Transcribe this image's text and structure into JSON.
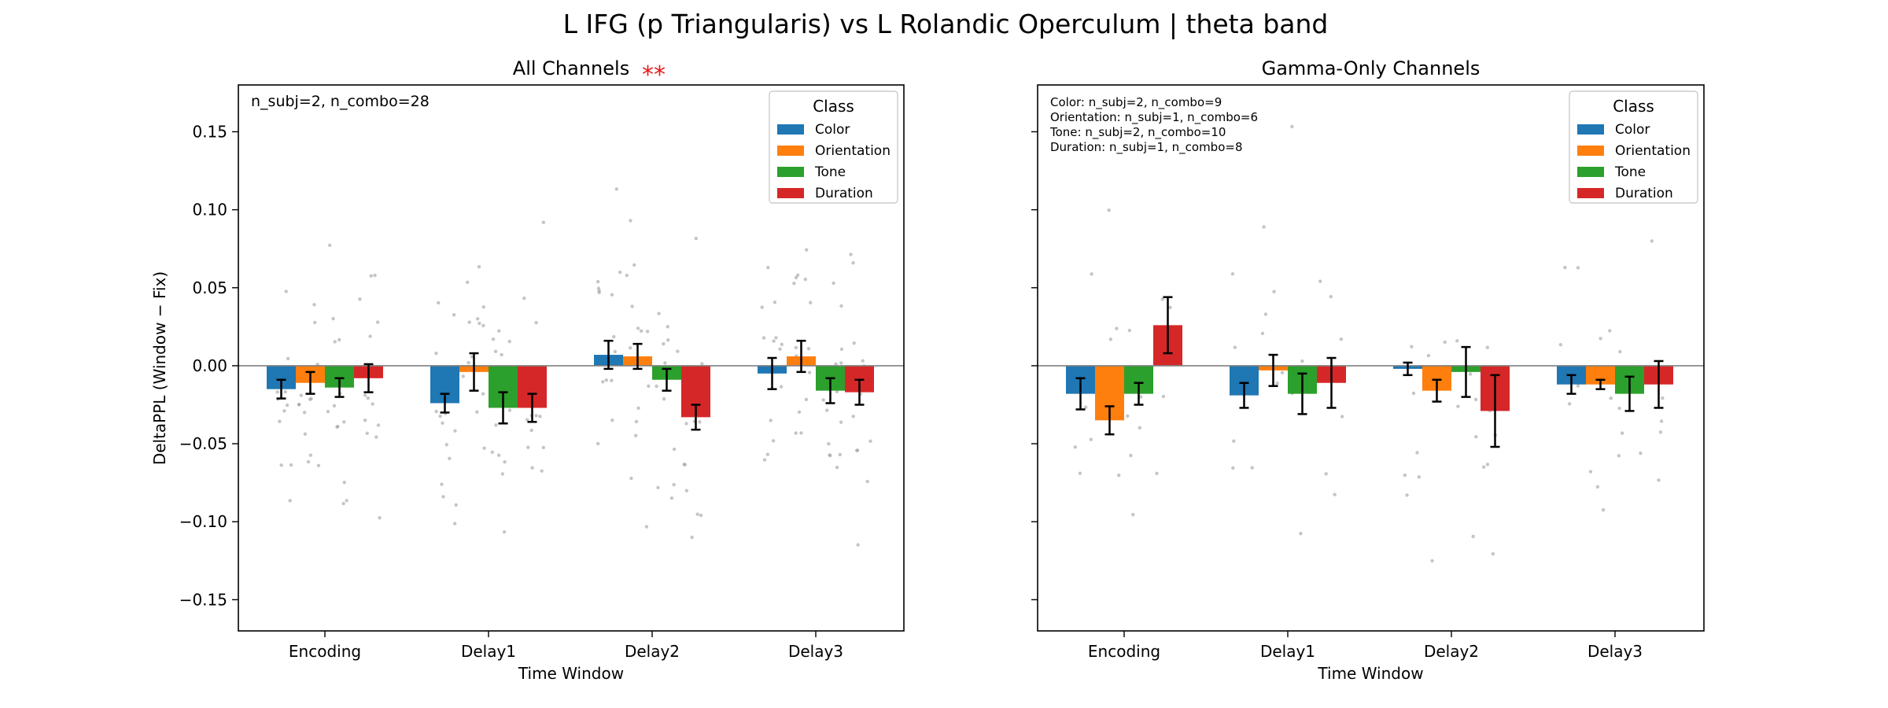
{
  "figure": {
    "title": "L IFG (p Triangularis) vs L Rolandic Operculum  |  theta band",
    "ylabel": "DeltaPPL (Window − Fix)",
    "ylim": [
      -0.17,
      0.18
    ],
    "yticks": [
      0.15,
      0.1,
      0.05,
      0.0,
      -0.05,
      -0.1,
      -0.15
    ],
    "ytick_labels": [
      "0.15",
      "0.10",
      "0.05",
      "0.00",
      "−0.05",
      "−0.10",
      "−0.15"
    ],
    "legend_title": "Class",
    "classes": [
      {
        "name": "Color",
        "color": "#1f77b4"
      },
      {
        "name": "Orientation",
        "color": "#ff7f0e"
      },
      {
        "name": "Tone",
        "color": "#2ca02c"
      },
      {
        "name": "Duration",
        "color": "#d62728"
      }
    ]
  },
  "chart_data": [
    {
      "type": "bar",
      "title": "All Channels",
      "significance": "**",
      "xlabel": "Time Window",
      "ylabel": "DeltaPPL (Window − Fix)",
      "categories": [
        "Encoding",
        "Delay1",
        "Delay2",
        "Delay3"
      ],
      "ylim": [
        -0.17,
        0.18
      ],
      "legend_loc": "upper right",
      "annotation": [
        "n_subj=2, n_combo=28"
      ],
      "series": [
        {
          "name": "Color",
          "values": [
            -0.015,
            -0.024,
            0.007,
            -0.005
          ],
          "err": [
            0.006,
            0.006,
            0.009,
            0.01
          ]
        },
        {
          "name": "Orientation",
          "values": [
            -0.011,
            -0.004,
            0.006,
            0.006
          ],
          "err": [
            0.007,
            0.012,
            0.008,
            0.01
          ]
        },
        {
          "name": "Tone",
          "values": [
            -0.014,
            -0.027,
            -0.009,
            -0.016
          ],
          "err": [
            0.006,
            0.01,
            0.007,
            0.008
          ]
        },
        {
          "name": "Duration",
          "values": [
            -0.008,
            -0.027,
            -0.033,
            -0.017
          ],
          "err": [
            0.009,
            0.009,
            0.008,
            0.008
          ]
        }
      ]
    },
    {
      "type": "bar",
      "title": "Gamma-Only Channels",
      "xlabel": "Time Window",
      "categories": [
        "Encoding",
        "Delay1",
        "Delay2",
        "Delay3"
      ],
      "ylim": [
        -0.17,
        0.18
      ],
      "legend_loc": "upper right",
      "annotation": [
        "Color: n_subj=2, n_combo=9",
        "Orientation: n_subj=1, n_combo=6",
        "Tone: n_subj=2, n_combo=10",
        "Duration: n_subj=1, n_combo=8"
      ],
      "series": [
        {
          "name": "Color",
          "values": [
            -0.018,
            -0.019,
            -0.002,
            -0.012
          ],
          "err": [
            0.01,
            0.008,
            0.004,
            0.006
          ]
        },
        {
          "name": "Orientation",
          "values": [
            -0.035,
            -0.003,
            -0.016,
            -0.012
          ],
          "err": [
            0.009,
            0.01,
            0.007,
            0.003
          ]
        },
        {
          "name": "Tone",
          "values": [
            -0.018,
            -0.018,
            -0.004,
            -0.018
          ],
          "err": [
            0.007,
            0.013,
            0.016,
            0.011
          ]
        },
        {
          "name": "Duration",
          "values": [
            0.026,
            -0.011,
            -0.029,
            -0.012
          ],
          "err": [
            0.018,
            0.016,
            0.023,
            0.015
          ]
        }
      ]
    }
  ]
}
